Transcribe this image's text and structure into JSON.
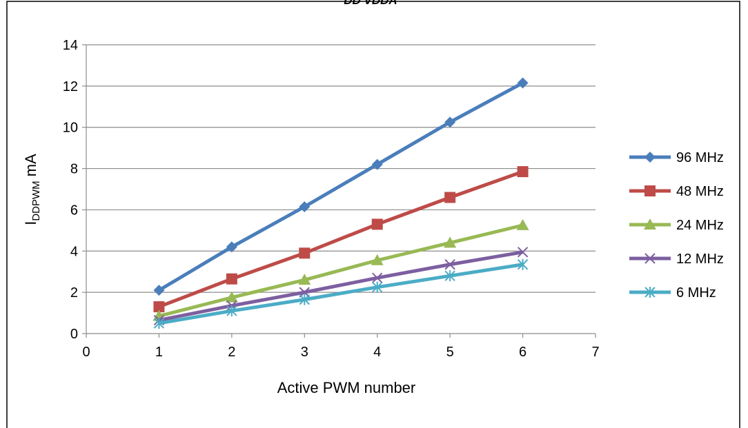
{
  "chart_data": {
    "type": "line",
    "title": "DD VDDA",
    "xlabel": "Active PWM number",
    "ylabel": "I",
    "ylabel_sub": "DDPWM",
    "ylabel_unit": " mA",
    "xlim": [
      0,
      7
    ],
    "ylim": [
      0,
      14
    ],
    "xticks": [
      0,
      1,
      2,
      3,
      4,
      5,
      6,
      7
    ],
    "yticks": [
      0,
      2,
      4,
      6,
      8,
      10,
      12,
      14
    ],
    "grid": "horizontal",
    "legend_position": "right",
    "x": [
      1,
      2,
      3,
      4,
      5,
      6
    ],
    "series": [
      {
        "name": "96 MHz",
        "color": "#4a7ebb",
        "marker": "diamond",
        "values": [
          2.1,
          4.2,
          6.15,
          8.2,
          10.25,
          12.15
        ]
      },
      {
        "name": "48 MHz",
        "color": "#be4b48",
        "marker": "square",
        "values": [
          1.3,
          2.65,
          3.9,
          5.3,
          6.6,
          7.85
        ]
      },
      {
        "name": "24 MHz",
        "color": "#98b954",
        "marker": "triangle",
        "values": [
          0.85,
          1.75,
          2.6,
          3.55,
          4.4,
          5.25
        ]
      },
      {
        "name": "12 MHz",
        "color": "#7d5fa0",
        "marker": "x",
        "values": [
          0.65,
          1.35,
          2.0,
          2.7,
          3.35,
          3.95
        ]
      },
      {
        "name": "6 MHz",
        "color": "#4bacc6",
        "marker": "asterisk",
        "values": [
          0.5,
          1.1,
          1.65,
          2.25,
          2.8,
          3.35
        ]
      }
    ]
  }
}
